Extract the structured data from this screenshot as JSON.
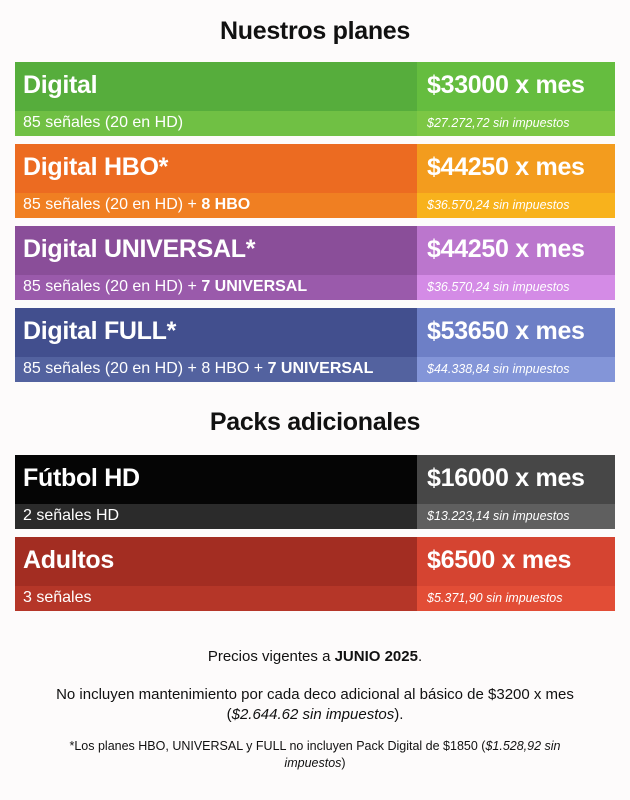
{
  "titles": {
    "plans": "Nuestros planes",
    "packs": "Packs adicionales"
  },
  "plans": [
    {
      "name": "Digital",
      "price": "$33000 x mes",
      "desc": "85 señales (20 en HD)",
      "desc_extra": "",
      "note": "$27.272,72 sin impuestos",
      "colors": {
        "name": "#56ad3c",
        "price": "#65bd3f",
        "desc": "#70c044",
        "note": "#7cc744"
      }
    },
    {
      "name": "Digital HBO*",
      "price": "$44250 x mes",
      "desc": "85 señales (20 en HD) + ",
      "desc_extra": "8 HBO",
      "note": "$36.570,24 sin impuestos",
      "colors": {
        "name": "#ec6b21",
        "price": "#f39c1e",
        "desc": "#f07f22",
        "note": "#f8b21c"
      }
    },
    {
      "name": "Digital UNIVERSAL*",
      "price": "$44250 x mes",
      "desc": "85 señales (20 en HD) + ",
      "desc_extra": "7 UNIVERSAL",
      "note": "$36.570,24 sin impuestos",
      "colors": {
        "name": "#8a4e99",
        "price": "#bb76cd",
        "desc": "#9a5aab",
        "note": "#d48be6"
      }
    },
    {
      "name": "Digital FULL*",
      "price": "$53650 x mes",
      "desc": "85 señales (20 en HD) + 8 HBO + ",
      "desc_extra": "7 UNIVERSAL",
      "note": "$44.338,84 sin impuestos",
      "colors": {
        "name": "#424f8e",
        "price": "#6d7fc6",
        "desc": "#53629f",
        "note": "#8395d8"
      }
    }
  ],
  "packs": [
    {
      "name": "Fútbol HD",
      "price": "$16000 x mes",
      "desc": "2 señales HD",
      "desc_extra": "",
      "note": "$13.223,14 sin impuestos",
      "colors": {
        "name": "#050505",
        "price": "#474747",
        "desc": "#2b2b2b",
        "note": "#5f5f5f"
      }
    },
    {
      "name": "Adultos",
      "price": "$6500 x mes",
      "desc": "3 señales",
      "desc_extra": "",
      "note": "$5.371,90 sin impuestos",
      "colors": {
        "name": "#a32d22",
        "price": "#d54431",
        "desc": "#b53628",
        "note": "#e24d36"
      }
    }
  ],
  "footer": {
    "line1_prefix": "Precios vigentes a ",
    "line1_bold": "JUNIO 2025",
    "line1_suffix": ".",
    "line2_text": "No incluyen mantenimiento por cada deco adicional al básico de $3200 x mes (",
    "line2_em": "$2.644.62 sin impuestos",
    "line2_end": ").",
    "line3_text": "*Los planes HBO, UNIVERSAL y FULL no incluyen Pack Digital de $1850 (",
    "line3_em": "$1.528,92 sin impuestos",
    "line3_end": ")"
  }
}
